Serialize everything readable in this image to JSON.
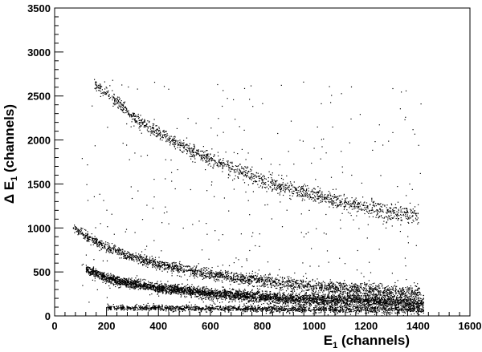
{
  "chart_data": {
    "type": "scatter",
    "title": "",
    "xlabel": {
      "base": "E",
      "sub": "1",
      "rest": " (channels)"
    },
    "ylabel": {
      "pre": "Δ E",
      "sub": "1",
      "rest": " (channels)"
    },
    "xlim": [
      0,
      1600
    ],
    "ylim": [
      0,
      3500
    ],
    "xticks": [
      0,
      200,
      400,
      600,
      800,
      1000,
      1200,
      1400,
      1600
    ],
    "yticks": [
      0,
      500,
      1000,
      1500,
      2000,
      2500,
      3000,
      3500
    ],
    "x_minor_step": 40,
    "y_minor_step": 100,
    "grid": false,
    "legend": "none",
    "marker_color": "#000000",
    "series": [
      {
        "band": "upper",
        "count": 1500,
        "x_range": [
          150,
          1400
        ],
        "spread_y": 40,
        "curve": [
          [
            150,
            2640
          ],
          [
            200,
            2540
          ],
          [
            300,
            2270
          ],
          [
            400,
            2090
          ],
          [
            500,
            1920
          ],
          [
            600,
            1790
          ],
          [
            700,
            1660
          ],
          [
            800,
            1540
          ],
          [
            900,
            1450
          ],
          [
            1000,
            1380
          ],
          [
            1100,
            1300
          ],
          [
            1200,
            1230
          ],
          [
            1300,
            1180
          ],
          [
            1400,
            1160
          ]
        ]
      },
      {
        "band": "middle",
        "count": 2200,
        "x_range": [
          70,
          1410
        ],
        "spread_y": 32,
        "curve": [
          [
            70,
            1000
          ],
          [
            100,
            950
          ],
          [
            150,
            860
          ],
          [
            200,
            780
          ],
          [
            300,
            670
          ],
          [
            400,
            590
          ],
          [
            500,
            530
          ],
          [
            600,
            480
          ],
          [
            700,
            440
          ],
          [
            800,
            400
          ],
          [
            900,
            370
          ],
          [
            1000,
            340
          ],
          [
            1100,
            320
          ],
          [
            1200,
            300
          ],
          [
            1300,
            280
          ],
          [
            1400,
            265
          ]
        ]
      },
      {
        "band": "lower",
        "count": 4200,
        "x_range": [
          120,
          1420
        ],
        "spread_y": 30,
        "curve": [
          [
            120,
            540
          ],
          [
            200,
            430
          ],
          [
            300,
            370
          ],
          [
            400,
            320
          ],
          [
            500,
            290
          ],
          [
            600,
            260
          ],
          [
            700,
            240
          ],
          [
            800,
            220
          ],
          [
            900,
            200
          ],
          [
            1000,
            190
          ],
          [
            1100,
            180
          ],
          [
            1200,
            170
          ],
          [
            1300,
            160
          ],
          [
            1400,
            150
          ]
        ]
      },
      {
        "band": "floor",
        "count": 1700,
        "x_range": [
          200,
          1420
        ],
        "spread_y": 18,
        "curve": [
          [
            200,
            100
          ],
          [
            600,
            90
          ],
          [
            1000,
            80
          ],
          [
            1420,
            75
          ]
        ]
      },
      {
        "band": "background",
        "count": 350,
        "x_range": [
          100,
          1420
        ],
        "y_range": [
          150,
          2700
        ]
      }
    ]
  }
}
